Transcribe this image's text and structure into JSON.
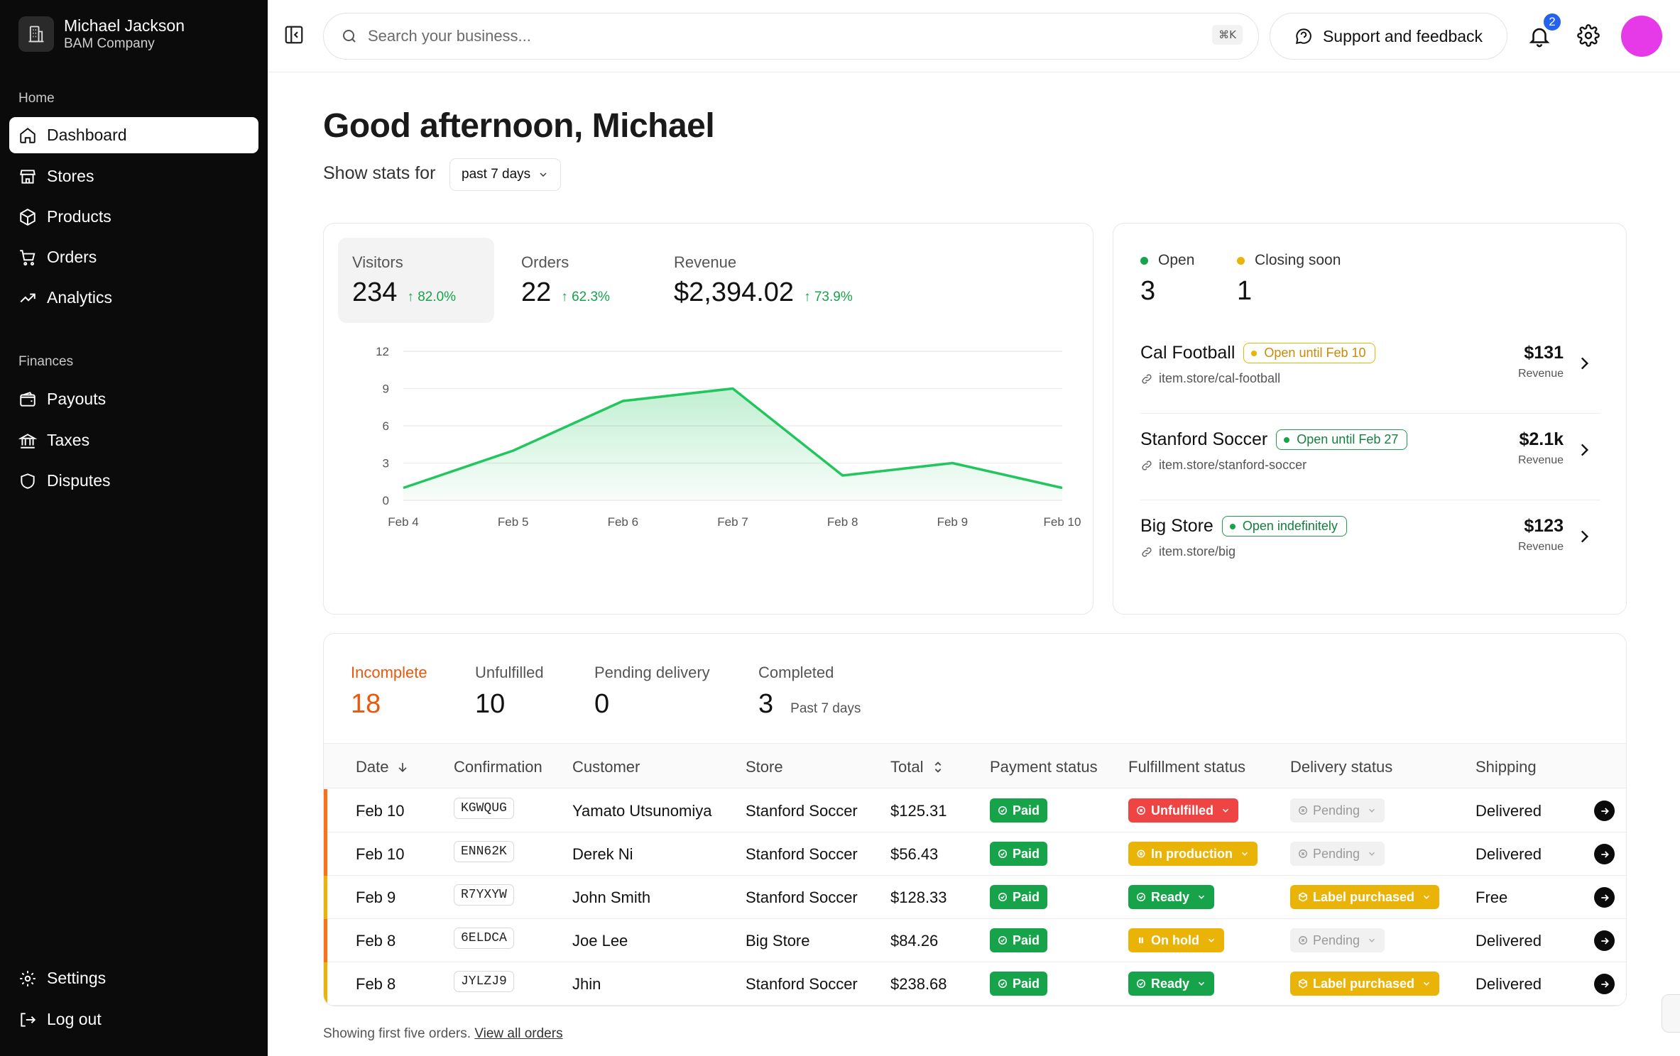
{
  "user": {
    "name": "Michael Jackson",
    "company": "BAM Company"
  },
  "sidebar": {
    "section_home": "Home",
    "section_finances": "Finances",
    "items": [
      {
        "label": "Dashboard",
        "icon": "home-icon"
      },
      {
        "label": "Stores",
        "icon": "store-icon"
      },
      {
        "label": "Products",
        "icon": "box-icon"
      },
      {
        "label": "Orders",
        "icon": "cart-icon"
      },
      {
        "label": "Analytics",
        "icon": "trend-icon"
      }
    ],
    "finance_items": [
      {
        "label": "Payouts",
        "icon": "wallet-icon"
      },
      {
        "label": "Taxes",
        "icon": "bank-icon"
      },
      {
        "label": "Disputes",
        "icon": "shield-icon"
      }
    ],
    "settings_label": "Settings",
    "logout_label": "Log out"
  },
  "topbar": {
    "search_placeholder": "Search your business...",
    "shortcut": "⌘K",
    "support_label": "Support and feedback",
    "notification_count": "2"
  },
  "header": {
    "greeting": "Good afternoon, Michael",
    "stats_for": "Show stats for",
    "range": "past 7 days"
  },
  "kpis": [
    {
      "label": "Visitors",
      "value": "234",
      "change": "82.0%"
    },
    {
      "label": "Orders",
      "value": "22",
      "change": "62.3%"
    },
    {
      "label": "Revenue",
      "value": "$2,394.02",
      "change": "73.9%"
    }
  ],
  "chart_data": {
    "type": "area",
    "x": [
      "Feb 4",
      "Feb 5",
      "Feb 6",
      "Feb 7",
      "Feb 8",
      "Feb 9",
      "Feb 10"
    ],
    "values": [
      1,
      4,
      8,
      9,
      2,
      3,
      1
    ],
    "ylim": [
      0,
      12
    ],
    "yticks": [
      "0",
      "3",
      "6",
      "9",
      "12"
    ],
    "grid": true,
    "color": "#22c55e"
  },
  "stores_summary": {
    "open_label": "Open",
    "open_count": "3",
    "closing_label": "Closing soon",
    "closing_count": "1"
  },
  "stores": [
    {
      "name": "Cal Football",
      "status": "Open until Feb 10",
      "url": "item.store/cal-football",
      "revenue": "$131",
      "revenue_label": "Revenue"
    },
    {
      "name": "Stanford Soccer",
      "status": "Open until Feb 27",
      "url": "item.store/stanford-soccer",
      "revenue": "$2.1k",
      "revenue_label": "Revenue"
    },
    {
      "name": "Big Store",
      "status": "Open indefinitely",
      "url": "item.store/big",
      "revenue": "$123",
      "revenue_label": "Revenue"
    }
  ],
  "order_stats": [
    {
      "label": "Incomplete",
      "value": "18"
    },
    {
      "label": "Unfulfilled",
      "value": "10"
    },
    {
      "label": "Pending delivery",
      "value": "0"
    },
    {
      "label": "Completed",
      "value": "3",
      "sub": "Past 7 days"
    }
  ],
  "table": {
    "columns": [
      "Date",
      "Confirmation",
      "Customer",
      "Store",
      "Total",
      "Payment status",
      "Fulfillment status",
      "Delivery status",
      "Shipping"
    ],
    "rows": [
      {
        "date": "Feb 10",
        "code": "KGWQUG",
        "customer": "Yamato Utsunomiya",
        "store": "Stanford Soccer",
        "total": "$125.31",
        "payment": "Paid",
        "fulfillment": "Unfulfilled",
        "delivery": "Pending",
        "shipping": "Delivered"
      },
      {
        "date": "Feb 10",
        "code": "ENN62K",
        "customer": "Derek Ni",
        "store": "Stanford Soccer",
        "total": "$56.43",
        "payment": "Paid",
        "fulfillment": "In production",
        "delivery": "Pending",
        "shipping": "Delivered"
      },
      {
        "date": "Feb 9",
        "code": "R7YXYW",
        "customer": "John Smith",
        "store": "Stanford Soccer",
        "total": "$128.33",
        "payment": "Paid",
        "fulfillment": "Ready",
        "delivery": "Label purchased",
        "shipping": "Free"
      },
      {
        "date": "Feb 8",
        "code": "6ELDCA",
        "customer": "Joe Lee",
        "store": "Big Store",
        "total": "$84.26",
        "payment": "Paid",
        "fulfillment": "On hold",
        "delivery": "Pending",
        "shipping": "Delivered"
      },
      {
        "date": "Feb 8",
        "code": "JYLZJ9",
        "customer": "Jhin",
        "store": "Stanford Soccer",
        "total": "$238.68",
        "payment": "Paid",
        "fulfillment": "Ready",
        "delivery": "Label purchased",
        "shipping": "Delivered"
      }
    ]
  },
  "footer": {
    "note": "Showing first five orders.",
    "link": "View all orders"
  }
}
